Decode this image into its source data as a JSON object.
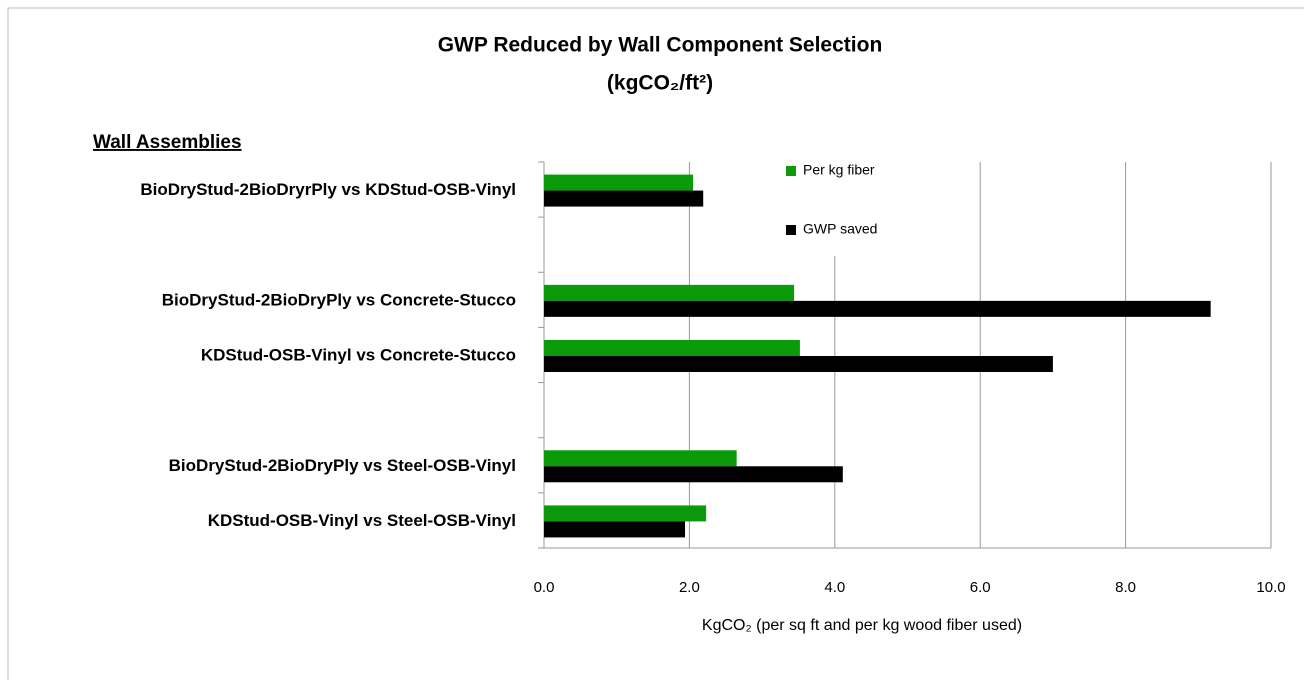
{
  "chart_data": {
    "type": "hbar",
    "title": "GWP Reduced by Wall Component Selection",
    "subtitle": "(kgCO₂/ft²)",
    "y_heading": "Wall Assemblies",
    "x_label": "KgCO₂  (per sq ft and per kg wood fiber used)",
    "categories": [
      "BioDryStud-2BioDryrPly vs KDStud-OSB-Vinyl",
      null,
      "BioDryStud-2BioDryPly vs Concrete-Stucco",
      "KDStud-OSB-Vinyl vs Concrete-Stucco",
      null,
      "BioDryStud-2BioDryPly vs Steel-OSB-Vinyl",
      "KDStud-OSB-Vinyl vs Steel-OSB-Vinyl"
    ],
    "series": [
      {
        "name": "Per kg fiber",
        "color": "#0a9a0a",
        "values": [
          2.05,
          null,
          3.44,
          3.52,
          null,
          2.65,
          2.23
        ]
      },
      {
        "name": "GWP saved",
        "color": "#000000",
        "values": [
          2.19,
          null,
          9.17,
          7.0,
          null,
          4.11,
          1.94
        ]
      }
    ],
    "xlim": [
      0,
      10
    ],
    "xticks": [
      {
        "value": 0,
        "label": "0.0"
      },
      {
        "value": 2,
        "label": "2.0"
      },
      {
        "value": 4,
        "label": "4.0"
      },
      {
        "value": 6,
        "label": "6.0"
      },
      {
        "value": 8,
        "label": "8.0"
      },
      {
        "value": 10,
        "label": "10.0"
      }
    ],
    "grid": true
  }
}
